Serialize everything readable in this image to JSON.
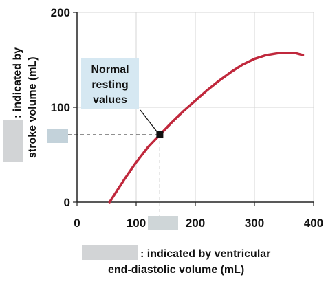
{
  "chart_data": {
    "type": "line",
    "xlabel_line1": ": indicated by ventricular",
    "xlabel_line2": "end-diastolic volume (mL)",
    "ylabel_line1": ": indicated by",
    "ylabel_line2": "stroke volume (mL)",
    "xlim": [
      0,
      400
    ],
    "ylim": [
      0,
      200
    ],
    "x_ticks": [
      0,
      100,
      200,
      300,
      400
    ],
    "y_ticks": [
      0,
      100,
      200
    ],
    "grid": true,
    "series": [
      {
        "color": "#c0283c",
        "x": [
          55,
          80,
          100,
          120,
          140,
          160,
          180,
          200,
          220,
          240,
          260,
          280,
          300,
          320,
          340,
          355,
          370,
          382
        ],
        "y": [
          0,
          24,
          42,
          58,
          71,
          84,
          96,
          107,
          118,
          128,
          137,
          145,
          151,
          155,
          157,
          157.5,
          157,
          155
        ]
      }
    ],
    "callout": {
      "lines": [
        "Normal",
        "resting",
        "values"
      ],
      "point": {
        "x": 140,
        "y": 71
      },
      "box_color": "#d6e8f2"
    },
    "redacted_color": "#d0d4d6"
  }
}
